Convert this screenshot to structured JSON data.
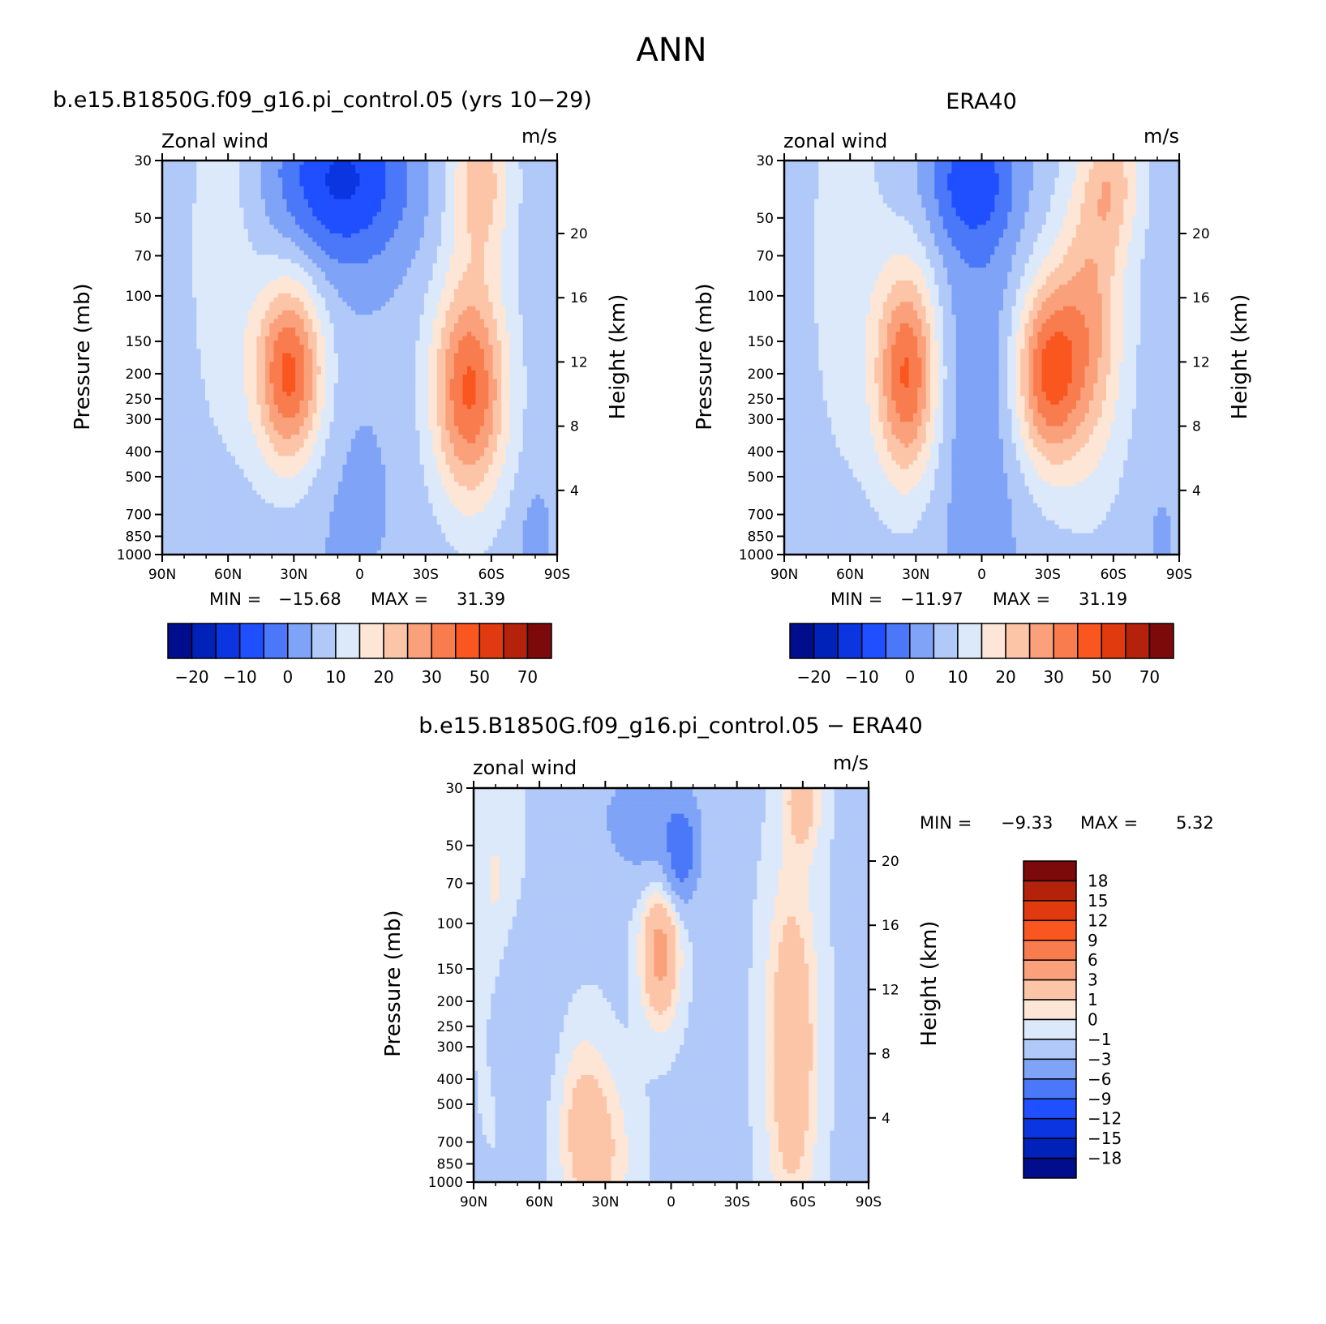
{
  "figure": {
    "title": "ANN"
  },
  "chart_data": [
    {
      "type": "heatmap",
      "title": "b.e15.B1850G.f09_g16.pi_control.05 (yrs 10−29)",
      "left_string": "Zonal wind",
      "right_string": "m/s",
      "ylabel": "Pressure (mb)",
      "ylabel2": "Height (km)",
      "x_ticks": [
        "90N",
        "60N",
        "30N",
        "0",
        "30S",
        "60S",
        "90S"
      ],
      "y_ticks": [
        "30",
        "50",
        "70",
        "100",
        "150",
        "200",
        "250",
        "300",
        "400",
        "500",
        "700",
        "850",
        "1000"
      ],
      "y2_ticks": [
        "20",
        "16",
        "12",
        "8",
        "4"
      ],
      "min_label": "MIN =",
      "min_value": "−15.68",
      "max_label": "MAX =",
      "max_value": "31.39",
      "colorbar_labels": [
        "−20",
        "−10",
        "0",
        "10",
        "20",
        "30",
        "50",
        "70"
      ],
      "jets": [
        {
          "lat": 32,
          "p": 200,
          "peak": 31.39
        },
        {
          "lat": -50,
          "p": 230,
          "peak": 30.5
        }
      ]
    },
    {
      "type": "heatmap",
      "title": "ERA40",
      "left_string": "zonal wind",
      "right_string": "m/s",
      "ylabel": "Pressure (mb)",
      "ylabel2": "Height (km)",
      "x_ticks": [
        "90N",
        "60N",
        "30N",
        "0",
        "30S",
        "60S",
        "90S"
      ],
      "y_ticks": [
        "30",
        "50",
        "70",
        "100",
        "150",
        "200",
        "250",
        "300",
        "400",
        "500",
        "700",
        "850",
        "1000"
      ],
      "y2_ticks": [
        "20",
        "16",
        "12",
        "8",
        "4"
      ],
      "min_label": "MIN =",
      "min_value": "−11.97",
      "max_label": "MAX =",
      "max_value": "31.19",
      "colorbar_labels": [
        "−20",
        "−10",
        "0",
        "10",
        "20",
        "30",
        "50",
        "70"
      ],
      "jets": [
        {
          "lat": 34,
          "p": 200,
          "peak": 31.0
        },
        {
          "lat": -30,
          "p": 200,
          "peak": 31.19
        }
      ]
    },
    {
      "type": "heatmap",
      "title": "b.e15.B1850G.f09_g16.pi_control.05 − ERA40",
      "left_string": "zonal wind",
      "right_string": "m/s",
      "ylabel": "Pressure (mb)",
      "ylabel2": "Height (km)",
      "x_ticks": [
        "90N",
        "60N",
        "30N",
        "0",
        "30S",
        "60S",
        "90S"
      ],
      "y_ticks": [
        "30",
        "50",
        "70",
        "100",
        "150",
        "200",
        "250",
        "300",
        "400",
        "500",
        "700",
        "850",
        "1000"
      ],
      "y2_ticks": [
        "20",
        "16",
        "12",
        "8",
        "4"
      ],
      "min_label": "MIN =",
      "min_value": "−9.33",
      "max_label": "MAX =",
      "max_value": "5.32",
      "colorbar_labels": [
        "18",
        "15",
        "12",
        "9",
        "6",
        "3",
        "1",
        "0",
        "−1",
        "−3",
        "−6",
        "−9",
        "−12",
        "−15",
        "−18"
      ]
    }
  ],
  "palettes": {
    "abs_levels": [
      -25,
      -20,
      -15,
      -10,
      -5,
      0,
      5,
      10,
      15,
      20,
      25,
      30,
      40,
      50,
      60,
      70
    ],
    "abs_colors": [
      "#000d8c",
      "#0022b8",
      "#0a35e0",
      "#1f4fff",
      "#4a78f8",
      "#7fa3f7",
      "#b0c9f9",
      "#dce9fb",
      "#fde6d6",
      "#fcc5a8",
      "#faa07a",
      "#f97c4f",
      "#fa5620",
      "#e03a0e",
      "#b5220c",
      "#7d0a0a"
    ],
    "diff_levels": [
      -18,
      -15,
      -12,
      -9,
      -6,
      -3,
      -1,
      0,
      1,
      3,
      6,
      9,
      12,
      15,
      18
    ],
    "diff_colors": [
      "#000d8c",
      "#0022b8",
      "#0a35e0",
      "#1f4fff",
      "#4a78f8",
      "#7fa3f7",
      "#b0c9f9",
      "#dce9fb",
      "#fde6d6",
      "#fcc5a8",
      "#faa07a",
      "#f97c4f",
      "#fa5620",
      "#e03a0e",
      "#b5220c",
      "#7d0a0a"
    ]
  }
}
